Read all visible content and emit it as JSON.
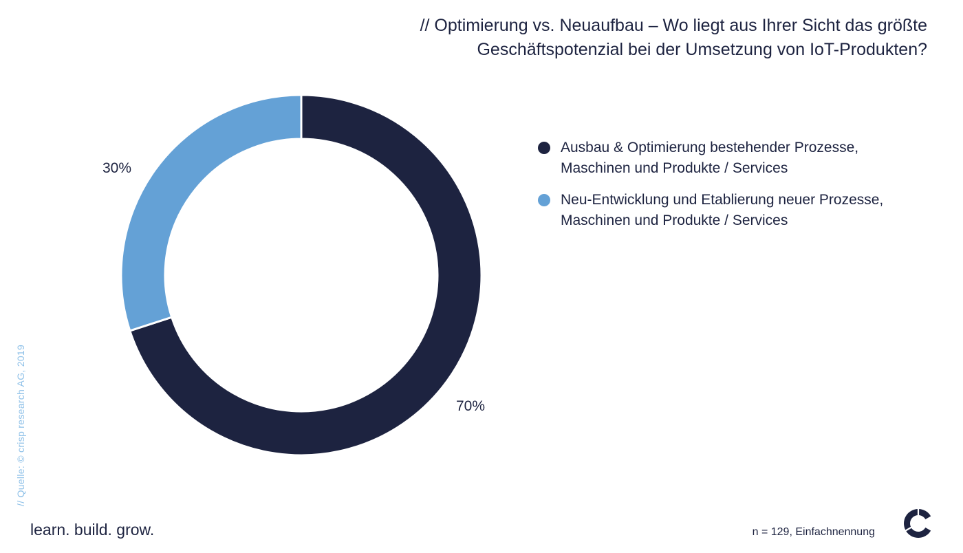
{
  "header": {
    "title_line1": "// Optimierung vs. Neuaufbau – Wo liegt aus Ihrer Sicht das größte",
    "title_line2": "Geschäftspotenzial bei der Umsetzung von IoT-Produkten?"
  },
  "chart_data": {
    "type": "pie",
    "variant": "donut",
    "title": "// Optimierung vs. Neuaufbau – Wo liegt aus Ihrer Sicht das größte Geschäftspotenzial bei der Umsetzung von IoT-Produkten?",
    "series": [
      {
        "name": "Ausbau & Optimierung bestehender Prozesse, Maschinen und Produkte / Services",
        "value": 70,
        "label": "70%",
        "color": "#1d2340"
      },
      {
        "name": "Neu-Entwicklung und Etablierung neuer Prozesse, Maschinen und Produkte / Services",
        "value": 30,
        "label": "30%",
        "color": "#64a1d6"
      }
    ],
    "legend_position": "right"
  },
  "legend": {
    "items": [
      {
        "line1": "Ausbau & Optimierung bestehender Prozesse,",
        "line2": "Maschinen und Produkte / Services",
        "color": "#1d2340"
      },
      {
        "line1": "Neu-Entwicklung und Etablierung neuer Prozesse,",
        "line2": "Maschinen und Produkte / Services",
        "color": "#64a1d6"
      }
    ]
  },
  "footer": {
    "source": "// Quelle: © crisp research AG, 2019",
    "tagline": "learn. build. grow.",
    "sample": "n = 129, Einfachnennung",
    "logo_icon": "crisp-c-logo-icon"
  }
}
